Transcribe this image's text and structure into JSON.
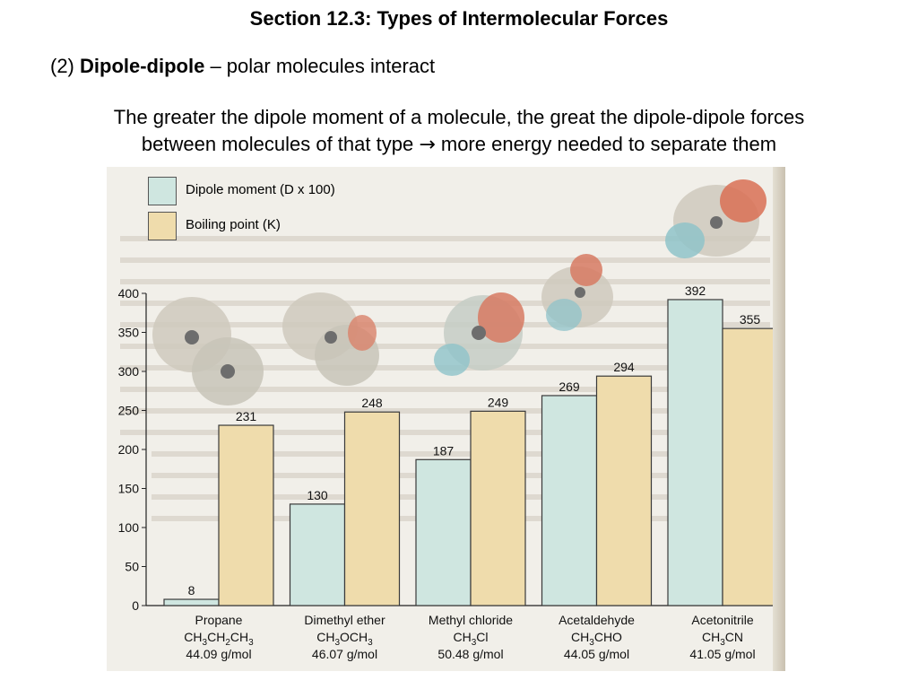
{
  "slide": {
    "title": "Section 12.3:  Types of Intermolecular Forces",
    "subtitle_prefix": "(2) ",
    "subtitle_bold": "Dipole-dipole",
    "subtitle_rest": " – polar molecules interact",
    "desc_line1": "The greater the dipole moment of a molecule, the great the dipole-dipole forces",
    "desc_line2a": "between molecules of that type ",
    "desc_arrow": "→",
    "desc_line2b": " more energy needed to separate them"
  },
  "colors": {
    "dipole": "#cfe6e0",
    "boiling": "#efdcac",
    "bar_stroke": "#3a3a3a"
  },
  "chart_data": {
    "type": "bar",
    "categories": [
      "Propane",
      "Dimethyl ether",
      "Methyl chloride",
      "Acetaldehyde",
      "Acetonitrile"
    ],
    "formulas": [
      [
        [
          "CH",
          ""
        ],
        [
          "3",
          "sub"
        ],
        [
          "CH",
          ""
        ],
        [
          "2",
          "sub"
        ],
        [
          "CH",
          ""
        ],
        [
          "3",
          "sub"
        ]
      ],
      [
        [
          "CH",
          ""
        ],
        [
          "3",
          "sub"
        ],
        [
          "OCH",
          ""
        ],
        [
          "3",
          "sub"
        ]
      ],
      [
        [
          "CH",
          ""
        ],
        [
          "3",
          "sub"
        ],
        [
          "Cl",
          ""
        ]
      ],
      [
        [
          "CH",
          ""
        ],
        [
          "3",
          "sub"
        ],
        [
          "CHO",
          ""
        ]
      ],
      [
        [
          "CH",
          ""
        ],
        [
          "3",
          "sub"
        ],
        [
          "CN",
          ""
        ]
      ]
    ],
    "molar_masses": [
      "44.09 g/mol",
      "46.07 g/mol",
      "50.48 g/mol",
      "44.05 g/mol",
      "41.05 g/mol"
    ],
    "series": [
      {
        "name": "Dipole moment (D x 100)",
        "values": [
          8,
          130,
          187,
          269,
          392
        ]
      },
      {
        "name": "Boiling point (K)",
        "values": [
          231,
          248,
          249,
          294,
          355
        ]
      }
    ],
    "ylim": [
      0,
      400
    ],
    "yticks": [
      0,
      50,
      100,
      150,
      200,
      250,
      300,
      350,
      400
    ],
    "legend_position": "top-left"
  }
}
